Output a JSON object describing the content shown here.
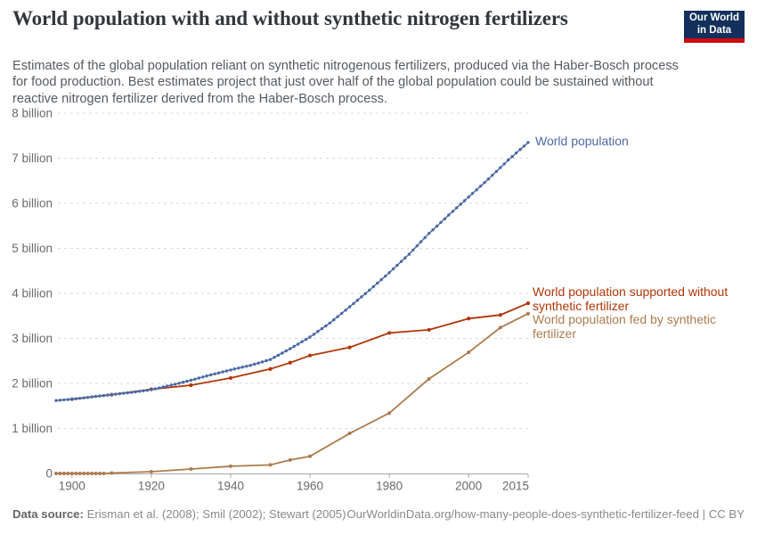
{
  "header": {
    "title": "World population with and without synthetic nitrogen fertilizers",
    "subtitle": "Estimates of the global population reliant on synthetic nitrogenous fertilizers, produced via the Haber-Bosch process for food production. Best estimates project that just over half of the global population could be sustained without reactive nitrogen fertilizer derived from the Haber-Bosch process.",
    "logo": {
      "line1": "Our World",
      "line2": "in Data",
      "bg_color": "#12305b",
      "accent_color": "#d10a11"
    }
  },
  "chart_data": {
    "type": "line",
    "title": "World population with and without synthetic nitrogen fertilizers",
    "xlabel": "",
    "ylabel": "",
    "unit": "billion people",
    "x_axis": {
      "range": [
        1896,
        2015
      ],
      "ticks": [
        1900,
        1920,
        1940,
        1960,
        1980,
        2000,
        2015
      ]
    },
    "y_axis": {
      "range": [
        0,
        8.4
      ],
      "tick_labels": [
        "0",
        "1 billion",
        "2 billion",
        "3 billion",
        "4 billion",
        "5 billion",
        "6 billion",
        "7 billion",
        "8 billion"
      ],
      "grid": true
    },
    "legend_position": "end-of-line labels (right side)",
    "series": [
      {
        "name": "World population",
        "color": "#4b69a5",
        "marker": "annual-dots",
        "points": [
          [
            1896,
            1.62
          ],
          [
            1900,
            1.65
          ],
          [
            1905,
            1.7
          ],
          [
            1910,
            1.75
          ],
          [
            1915,
            1.8
          ],
          [
            1920,
            1.86
          ],
          [
            1925,
            1.96
          ],
          [
            1930,
            2.07
          ],
          [
            1935,
            2.19
          ],
          [
            1940,
            2.3
          ],
          [
            1945,
            2.4
          ],
          [
            1950,
            2.53
          ],
          [
            1955,
            2.77
          ],
          [
            1960,
            3.03
          ],
          [
            1965,
            3.34
          ],
          [
            1970,
            3.7
          ],
          [
            1975,
            4.07
          ],
          [
            1980,
            4.46
          ],
          [
            1985,
            4.87
          ],
          [
            1990,
            5.33
          ],
          [
            1995,
            5.74
          ],
          [
            2000,
            6.14
          ],
          [
            2005,
            6.54
          ],
          [
            2010,
            6.96
          ],
          [
            2015,
            7.35
          ]
        ]
      },
      {
        "name": "World population supported without synthetic fertilizer",
        "color": "#b13507",
        "marker": "point-markers",
        "points": [
          [
            1900,
            1.65
          ],
          [
            1910,
            1.75
          ],
          [
            1920,
            1.87
          ],
          [
            1930,
            1.96
          ],
          [
            1940,
            2.12
          ],
          [
            1950,
            2.32
          ],
          [
            1955,
            2.46
          ],
          [
            1960,
            2.62
          ],
          [
            1970,
            2.8
          ],
          [
            1980,
            3.12
          ],
          [
            1990,
            3.19
          ],
          [
            2000,
            3.44
          ],
          [
            2008,
            3.52
          ],
          [
            2015,
            3.78
          ]
        ]
      },
      {
        "name": "World population fed by synthetic fertilizer",
        "color": "#ad7b4e",
        "marker": "point-markers",
        "points": [
          [
            1896,
            0
          ],
          [
            1897,
            0
          ],
          [
            1898,
            0
          ],
          [
            1899,
            0
          ],
          [
            1900,
            0
          ],
          [
            1901,
            0
          ],
          [
            1902,
            0
          ],
          [
            1903,
            0
          ],
          [
            1904,
            0
          ],
          [
            1905,
            0
          ],
          [
            1906,
            0
          ],
          [
            1907,
            0
          ],
          [
            1908,
            0
          ],
          [
            1910,
            0.01
          ],
          [
            1920,
            0.04
          ],
          [
            1930,
            0.1
          ],
          [
            1940,
            0.16
          ],
          [
            1950,
            0.19
          ],
          [
            1955,
            0.3
          ],
          [
            1960,
            0.38
          ],
          [
            1970,
            0.89
          ],
          [
            1980,
            1.34
          ],
          [
            1990,
            2.1
          ],
          [
            2000,
            2.69
          ],
          [
            2008,
            3.24
          ],
          [
            2015,
            3.55
          ]
        ]
      }
    ]
  },
  "footer": {
    "data_source_label": "Data source:",
    "data_source_value": "Erisman et al. (2008); Smil (2002); Stewart (2005)",
    "attribution": "OurWorldinData.org/how-many-people-does-synthetic-fertilizer-feed | CC BY"
  }
}
